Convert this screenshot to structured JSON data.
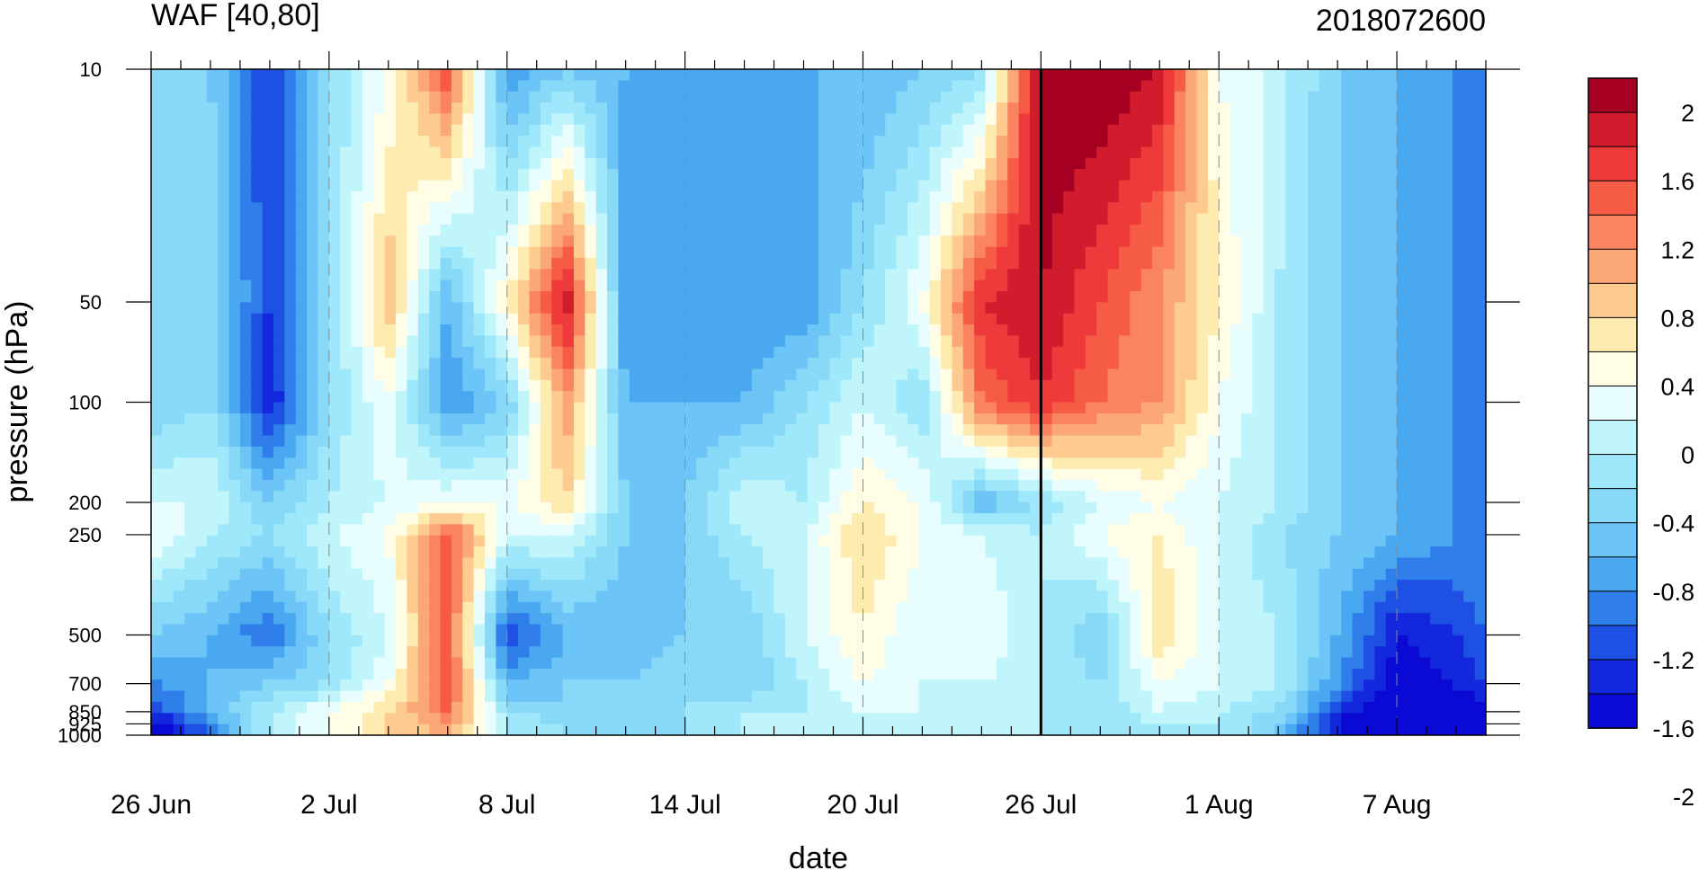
{
  "chart_data": {
    "type": "heatmap",
    "title": "WAF [40,80]",
    "subtitle": "2018072600",
    "xlabel": "date",
    "ylabel": "pressure (hPa)",
    "x_ticks": [
      "26 Jun",
      "2 Jul",
      "8 Jul",
      "14 Jul",
      "20 Jul",
      "26 Jul",
      "1 Aug",
      "7 Aug"
    ],
    "x_tick_days": [
      0,
      6,
      12,
      18,
      24,
      30,
      36,
      42
    ],
    "x_range_days": [
      0,
      45
    ],
    "y_ticks": [
      "10",
      "50",
      "100",
      "200",
      "250",
      "500",
      "700",
      "850",
      "925",
      "1000"
    ],
    "y_tick_values": [
      10,
      50,
      100,
      200,
      250,
      500,
      700,
      850,
      925,
      1000
    ],
    "y_scale": "log",
    "y_range": [
      1000,
      10
    ],
    "vertical_marker": "26 Jul",
    "colorbar": {
      "labels": [
        "2",
        "1.6",
        "1.2",
        "0.8",
        "0.4",
        "0",
        "-0.4",
        "-0.8",
        "-1.2",
        "-1.6",
        "-2"
      ],
      "colors": [
        "#a50021",
        "#d11c2e",
        "#ee3a3a",
        "#f65c45",
        "#fb8460",
        "#fca876",
        "#fdca8f",
        "#feebb0",
        "#fffde6",
        "#e8fdfe",
        "#c0f5fb",
        "#9fe7fa",
        "#88d8f7",
        "#6cc5f6",
        "#4aa8f0",
        "#2f7eea",
        "#1e51e3",
        "#1328dc",
        "#0a0ad4"
      ]
    },
    "columns_days": [
      0,
      2,
      4,
      6,
      8,
      10,
      12,
      14,
      16,
      18,
      20,
      22,
      24,
      26,
      28,
      30,
      32,
      34,
      36,
      38,
      40,
      42,
      44,
      45
    ],
    "rows_hPa": [
      10,
      50,
      100,
      200,
      250,
      500,
      700,
      850,
      925,
      1000
    ],
    "values": [
      [
        -0.4,
        -0.4,
        -1.2,
        -0.2,
        0.4,
        1.6,
        -0.8,
        -0.4,
        -0.6,
        -0.8,
        -0.8,
        -0.6,
        -0.6,
        -0.4,
        -0.2,
        2.2,
        2.2,
        2.0,
        0.4,
        0.1,
        -0.4,
        -0.6,
        -0.8,
        -0.8
      ],
      [
        -0.4,
        -0.2,
        -1.2,
        -0.3,
        1.0,
        -0.6,
        0.6,
        2.0,
        -0.8,
        -0.6,
        -0.8,
        -0.8,
        -0.2,
        0.4,
        1.8,
        2.0,
        1.6,
        1.2,
        0.6,
        0.0,
        -0.4,
        -0.6,
        -0.8,
        -0.8
      ],
      [
        -0.4,
        -0.2,
        -1.4,
        -0.2,
        0.4,
        -0.8,
        -0.4,
        1.2,
        -0.6,
        -0.6,
        -0.6,
        -0.2,
        0.2,
        -0.2,
        1.4,
        1.8,
        1.4,
        1.2,
        0.4,
        0.0,
        -0.4,
        -0.6,
        -0.8,
        -0.8
      ],
      [
        0.2,
        0.2,
        -0.4,
        0.0,
        0.2,
        0.4,
        0.4,
        0.8,
        -0.4,
        -0.4,
        0.2,
        0.0,
        0.6,
        0.4,
        -0.6,
        -0.2,
        0.2,
        0.4,
        0.2,
        0.0,
        -0.4,
        -0.6,
        -0.8,
        -0.8
      ],
      [
        0.4,
        0.0,
        -0.2,
        0.2,
        0.4,
        1.6,
        0.2,
        0.2,
        -0.4,
        -0.4,
        0.0,
        0.2,
        0.8,
        0.4,
        0.2,
        0.0,
        0.4,
        0.6,
        0.2,
        -0.2,
        -0.4,
        -0.6,
        -0.8,
        -0.8
      ],
      [
        -0.4,
        -0.6,
        -1.0,
        -0.2,
        0.2,
        1.6,
        -1.2,
        -0.6,
        -0.6,
        -0.4,
        -0.4,
        0.2,
        0.6,
        0.2,
        0.4,
        0.0,
        -0.4,
        0.8,
        0.2,
        0.0,
        -0.6,
        -1.4,
        -1.2,
        -1.0
      ],
      [
        -0.8,
        -0.6,
        -0.4,
        -0.2,
        0.4,
        1.6,
        -0.6,
        -0.4,
        -0.4,
        -0.2,
        -0.4,
        0.0,
        0.4,
        0.2,
        0.2,
        0.0,
        -0.2,
        0.4,
        0.2,
        0.0,
        -0.8,
        -1.6,
        -1.4,
        -1.2
      ],
      [
        -1.2,
        -0.6,
        0.0,
        0.4,
        0.8,
        1.4,
        -0.2,
        -0.4,
        -0.2,
        -0.2,
        0.0,
        0.0,
        0.2,
        0.2,
        0.2,
        0.0,
        -0.2,
        0.2,
        0.0,
        -0.2,
        -1.2,
        -1.8,
        -1.6,
        -1.4
      ],
      [
        -1.6,
        -0.8,
        0.0,
        0.4,
        0.8,
        1.2,
        0.0,
        -0.2,
        -0.2,
        -0.2,
        0.0,
        0.2,
        0.2,
        0.2,
        0.2,
        0.0,
        -0.2,
        0.0,
        0.0,
        -0.4,
        -1.4,
        -2.0,
        -1.8,
        -1.6
      ],
      [
        -1.8,
        -1.0,
        0.0,
        0.4,
        0.8,
        1.0,
        0.0,
        -0.2,
        -0.2,
        -0.2,
        0.0,
        0.2,
        0.2,
        0.2,
        0.2,
        0.0,
        -0.2,
        0.0,
        0.0,
        -0.4,
        -1.4,
        -2.0,
        -1.8,
        -1.6
      ]
    ]
  }
}
